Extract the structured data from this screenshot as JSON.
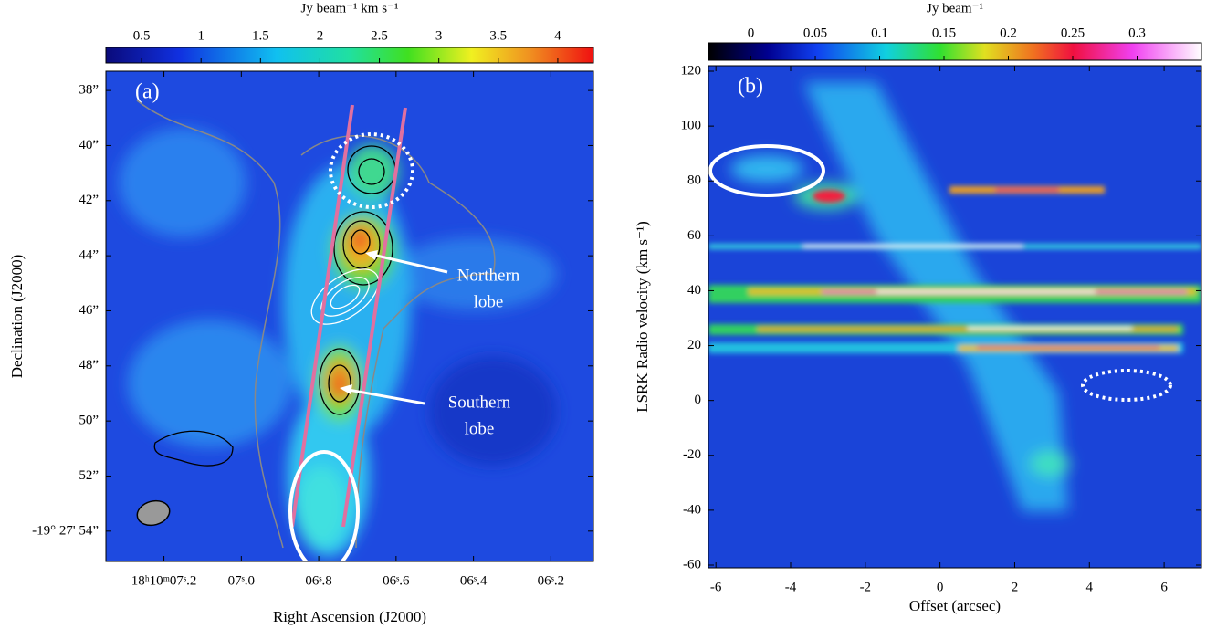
{
  "chart_data": [
    {
      "type": "map",
      "panel_label": "(a)",
      "colorbar": {
        "label": "Jy beam⁻¹ km s⁻¹",
        "lim": [
          0.2,
          4.3
        ],
        "ticks": [
          0.5,
          1,
          1.5,
          2,
          2.5,
          3,
          3.5,
          4
        ]
      },
      "xlabel": "Right Ascension (J2000)",
      "ylabel": "Declination (J2000)",
      "xlim": [
        7.35,
        6.09
      ],
      "xticks": [
        {
          "value": 7.2,
          "label": "18ʰ10ᵐ07ˢ.2"
        },
        {
          "value": 7.0,
          "label": "07ˢ.0"
        },
        {
          "value": 6.8,
          "label": "06ˢ.8"
        },
        {
          "value": 6.6,
          "label": "06ˢ.6"
        },
        {
          "value": 6.4,
          "label": "06ˢ.4"
        },
        {
          "value": 6.2,
          "label": "06ˢ.2"
        }
      ],
      "ylim": [
        55.1,
        37.3
      ],
      "yticks": [
        {
          "value": 38,
          "label": "38”"
        },
        {
          "value": 40,
          "label": "40”"
        },
        {
          "value": 42,
          "label": "42”"
        },
        {
          "value": 44,
          "label": "44”"
        },
        {
          "value": 46,
          "label": "46”"
        },
        {
          "value": 48,
          "label": "48”"
        },
        {
          "value": 50,
          "label": "50”"
        },
        {
          "value": 52,
          "label": "52”"
        },
        {
          "value": 54,
          "label": "-19° 27' 54”"
        }
      ],
      "annotations": [
        {
          "text": [
            "Northern",
            "lobe"
          ]
        },
        {
          "text": [
            "Southern",
            "lobe"
          ]
        }
      ]
    },
    {
      "type": "pv",
      "panel_label": "(b)",
      "colorbar": {
        "label": "Jy beam⁻¹",
        "lim": [
          -0.033,
          0.35
        ],
        "ticks": [
          0,
          0.05,
          0.1,
          0.15,
          0.2,
          0.25,
          0.3
        ]
      },
      "xlabel": "Offset (arcsec)",
      "ylabel": "LSRK Radio velocity (km s⁻¹)",
      "xlim": [
        -6.2,
        7.0
      ],
      "xticks": [
        -6,
        -4,
        -2,
        0,
        2,
        4,
        6
      ],
      "ylim": [
        -61,
        122
      ],
      "yticks": [
        -60,
        -40,
        -20,
        0,
        20,
        40,
        60,
        80,
        100,
        120
      ]
    }
  ]
}
